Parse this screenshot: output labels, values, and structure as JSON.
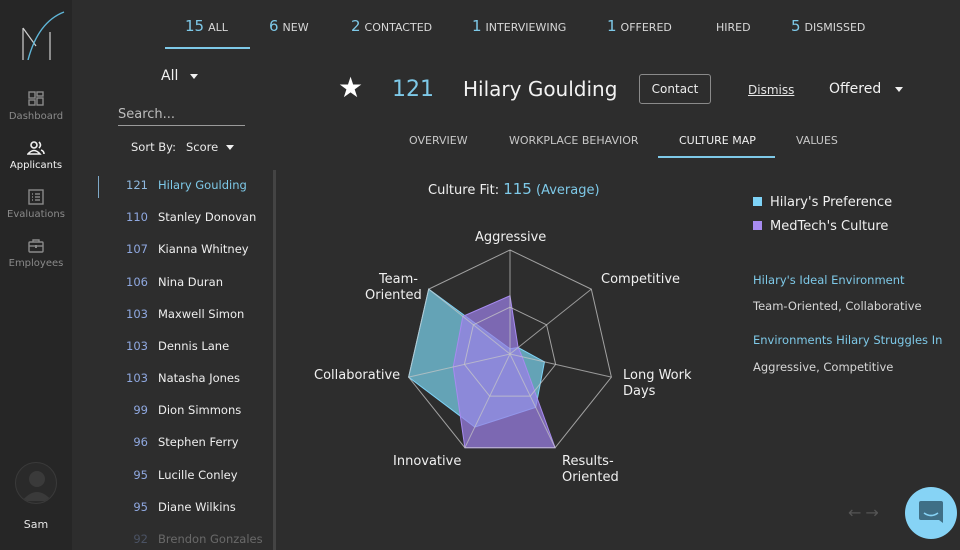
{
  "sidebar": {
    "logo": "M-logo",
    "items": [
      {
        "label": "Dashboard",
        "icon": "dashboard-grid-icon",
        "active": false
      },
      {
        "label": "Applicants",
        "icon": "people-icon",
        "active": true
      },
      {
        "label": "Evaluations",
        "icon": "checklist-icon",
        "active": false
      },
      {
        "label": "Employees",
        "icon": "briefcase-icon",
        "active": false
      }
    ],
    "user": {
      "name": "Sam",
      "icon": "user-avatar-icon"
    }
  },
  "top_tabs": [
    {
      "count": "15",
      "label": "ALL",
      "active": true
    },
    {
      "count": "6",
      "label": "NEW"
    },
    {
      "count": "2",
      "label": "CONTACTED"
    },
    {
      "count": "1",
      "label": "INTERVIEWING"
    },
    {
      "count": "1",
      "label": "OFFERED"
    },
    {
      "count": "",
      "label": "HIRED"
    },
    {
      "count": "5",
      "label": "DISMISSED"
    }
  ],
  "list": {
    "filter": "All",
    "search_placeholder": "Search...",
    "sort_label": "Sort By:",
    "sort_value": "Score",
    "applicants": [
      {
        "score": "121",
        "name": "Hilary Goulding",
        "selected": true
      },
      {
        "score": "110",
        "name": "Stanley Donovan"
      },
      {
        "score": "107",
        "name": "Kianna Whitney"
      },
      {
        "score": "106",
        "name": "Nina Duran"
      },
      {
        "score": "103",
        "name": "Maxwell Simon"
      },
      {
        "score": "103",
        "name": "Dennis Lane"
      },
      {
        "score": "103",
        "name": "Natasha Jones"
      },
      {
        "score": "99",
        "name": "Dion Simmons"
      },
      {
        "score": "96",
        "name": "Stephen Ferry"
      },
      {
        "score": "95",
        "name": "Lucille Conley"
      },
      {
        "score": "95",
        "name": "Diane Wilkins"
      },
      {
        "score": "92",
        "name": "Brendon Gonzales"
      }
    ]
  },
  "header": {
    "star_icon": "★",
    "score": "121",
    "name": "Hilary Goulding",
    "contact_label": "Contact",
    "dismiss_label": "Dismiss",
    "status": "Offered"
  },
  "sub_tabs": [
    {
      "label": "OVERVIEW"
    },
    {
      "label": "WORKPLACE BEHAVIOR"
    },
    {
      "label": "CULTURE MAP",
      "active": true
    },
    {
      "label": "VALUES"
    }
  ],
  "culture_fit": {
    "label": "Culture Fit:",
    "score": "115",
    "rating": "(Average)"
  },
  "legend": [
    {
      "label": "Hilary's Preference",
      "color": "#7ed3f7"
    },
    {
      "label": "MedTech's Culture",
      "color": "#a78bf0"
    }
  ],
  "notes": [
    {
      "title": "Hilary's Ideal Environment",
      "body": "Team-Oriented, Collaborative"
    },
    {
      "title": "Environments Hilary Struggles In",
      "body": "Aggressive, Competitive"
    }
  ],
  "colors": {
    "accent": "#7ec9e8",
    "background": "#2d2d2d",
    "sidebar": "#262626",
    "preference": "#7ed3f7",
    "culture": "#a78bf0"
  },
  "chart_data": {
    "type": "radar",
    "title": "Culture Map",
    "axes": [
      "Aggressive",
      "Competitive",
      "Long Work Days",
      "Results-Oriented",
      "Innovative",
      "Collaborative",
      "Team-Oriented"
    ],
    "axis_labels": [
      "Aggressive",
      "Competitive",
      "Long Work\nDays",
      "Results-\nOriented",
      "Innovative",
      "Collaborative",
      "Team-\nOriented"
    ],
    "range": [
      0,
      1
    ],
    "grid_rings": [
      0.45,
      1.0
    ],
    "series": [
      {
        "name": "Hilary's Preference",
        "color": "#7ed3f7",
        "values": [
          0.05,
          0.1,
          0.34,
          0.57,
          0.78,
          1.0,
          1.0
        ]
      },
      {
        "name": "MedTech's Culture",
        "color": "#a78bf0",
        "values": [
          0.56,
          0.1,
          0.12,
          1.0,
          1.0,
          0.56,
          0.58
        ]
      }
    ],
    "legend_position": "right"
  }
}
